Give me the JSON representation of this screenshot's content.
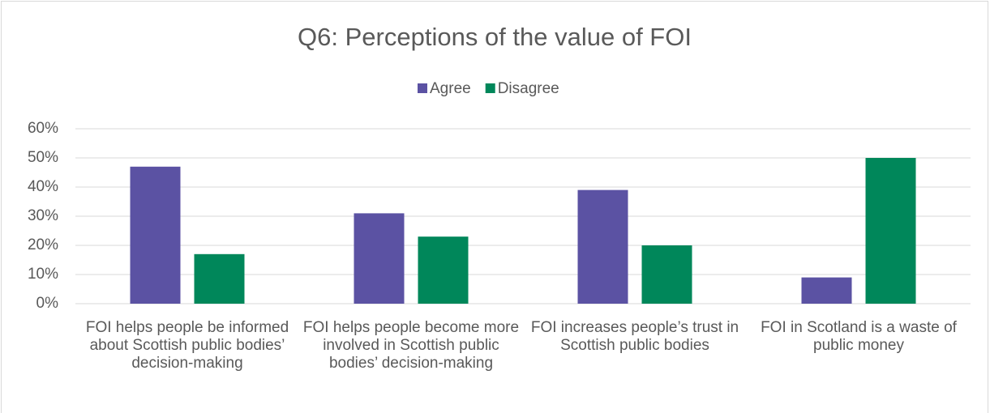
{
  "chart_data": {
    "type": "bar",
    "title": "Q6: Perceptions of the value of FOI",
    "categories": [
      "FOI helps people be informed about Scottish public bodies’ decision-making",
      "FOI helps people become more involved in Scottish public bodies’ decision-making",
      "FOI increases people’s trust in Scottish public bodies",
      "FOI in Scotland is a waste of public money"
    ],
    "series": [
      {
        "name": "Agree",
        "color": "#5b52a3",
        "values": [
          47,
          31,
          39,
          9
        ]
      },
      {
        "name": "Disagree",
        "color": "#00875a",
        "values": [
          17,
          23,
          20,
          50
        ]
      }
    ],
    "ylim": [
      0,
      60
    ],
    "yticks": [
      {
        "value": 0,
        "label": "0%"
      },
      {
        "value": 10,
        "label": "10%"
      },
      {
        "value": 20,
        "label": "20%"
      },
      {
        "value": 30,
        "label": "30%"
      },
      {
        "value": 40,
        "label": "40%"
      },
      {
        "value": 50,
        "label": "50%"
      },
      {
        "value": 60,
        "label": "60%"
      }
    ],
    "grid": true,
    "legend": "top"
  }
}
